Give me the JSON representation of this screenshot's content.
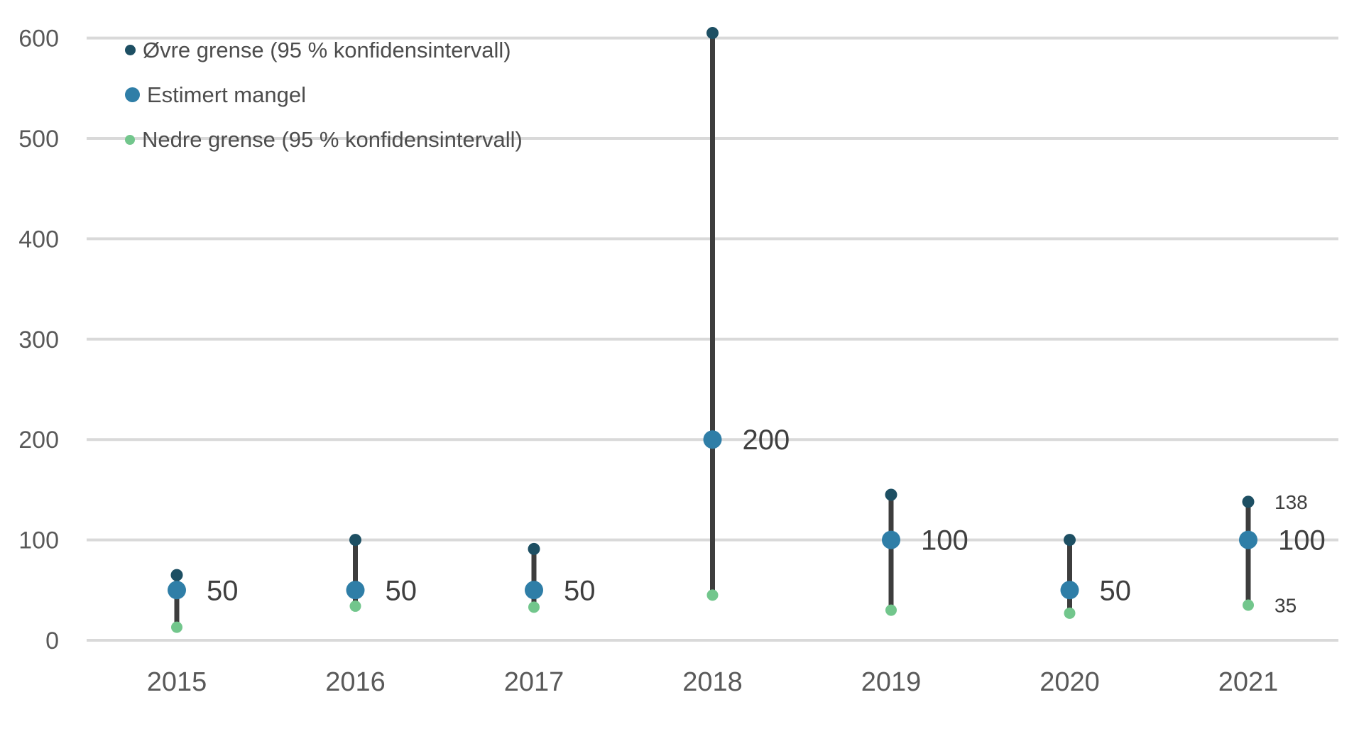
{
  "chart_data": {
    "type": "scatter",
    "variant": "lollipop-range",
    "description": "Estimated shortage per year with 95% confidence interval (upper/lower bounds)",
    "categories": [
      "2015",
      "2016",
      "2017",
      "2018",
      "2019",
      "2020",
      "2021"
    ],
    "series": [
      {
        "name": "Øvre grense (95 % konfidensintervall)",
        "role": "upper",
        "color": "#1d4f63",
        "values": [
          65,
          100,
          91,
          605,
          145,
          100,
          138
        ]
      },
      {
        "name": "Estimert mangel",
        "role": "estimate",
        "color": "#2f7ea7",
        "values": [
          50,
          50,
          50,
          200,
          100,
          50,
          100
        ]
      },
      {
        "name": "Nedre grense (95 % konfidensintervall)",
        "role": "lower",
        "color": "#72c68c",
        "values": [
          13,
          34,
          33,
          45,
          30,
          27,
          35
        ]
      }
    ],
    "visible_point_labels": {
      "estimate": [
        "50",
        "50",
        "50",
        "200",
        "100",
        "50",
        "100"
      ],
      "upper": [
        "",
        "",
        "",
        "",
        "",
        "",
        "138"
      ],
      "lower": [
        "",
        "",
        "",
        "",
        "",
        "",
        "35"
      ]
    },
    "yticks": [
      0,
      100,
      200,
      300,
      400,
      500,
      600
    ],
    "ylim": [
      0,
      640
    ],
    "xlabel": "",
    "ylabel": "",
    "grid": true,
    "legend_position": "top-left",
    "colors": {
      "background": "#ffffff",
      "gridline": "#d9d9d9",
      "stem": "#3d3d3d",
      "axis_text": "#595959",
      "data_label": "#3f3f3f",
      "legend_text": "#4d4d4d"
    }
  }
}
